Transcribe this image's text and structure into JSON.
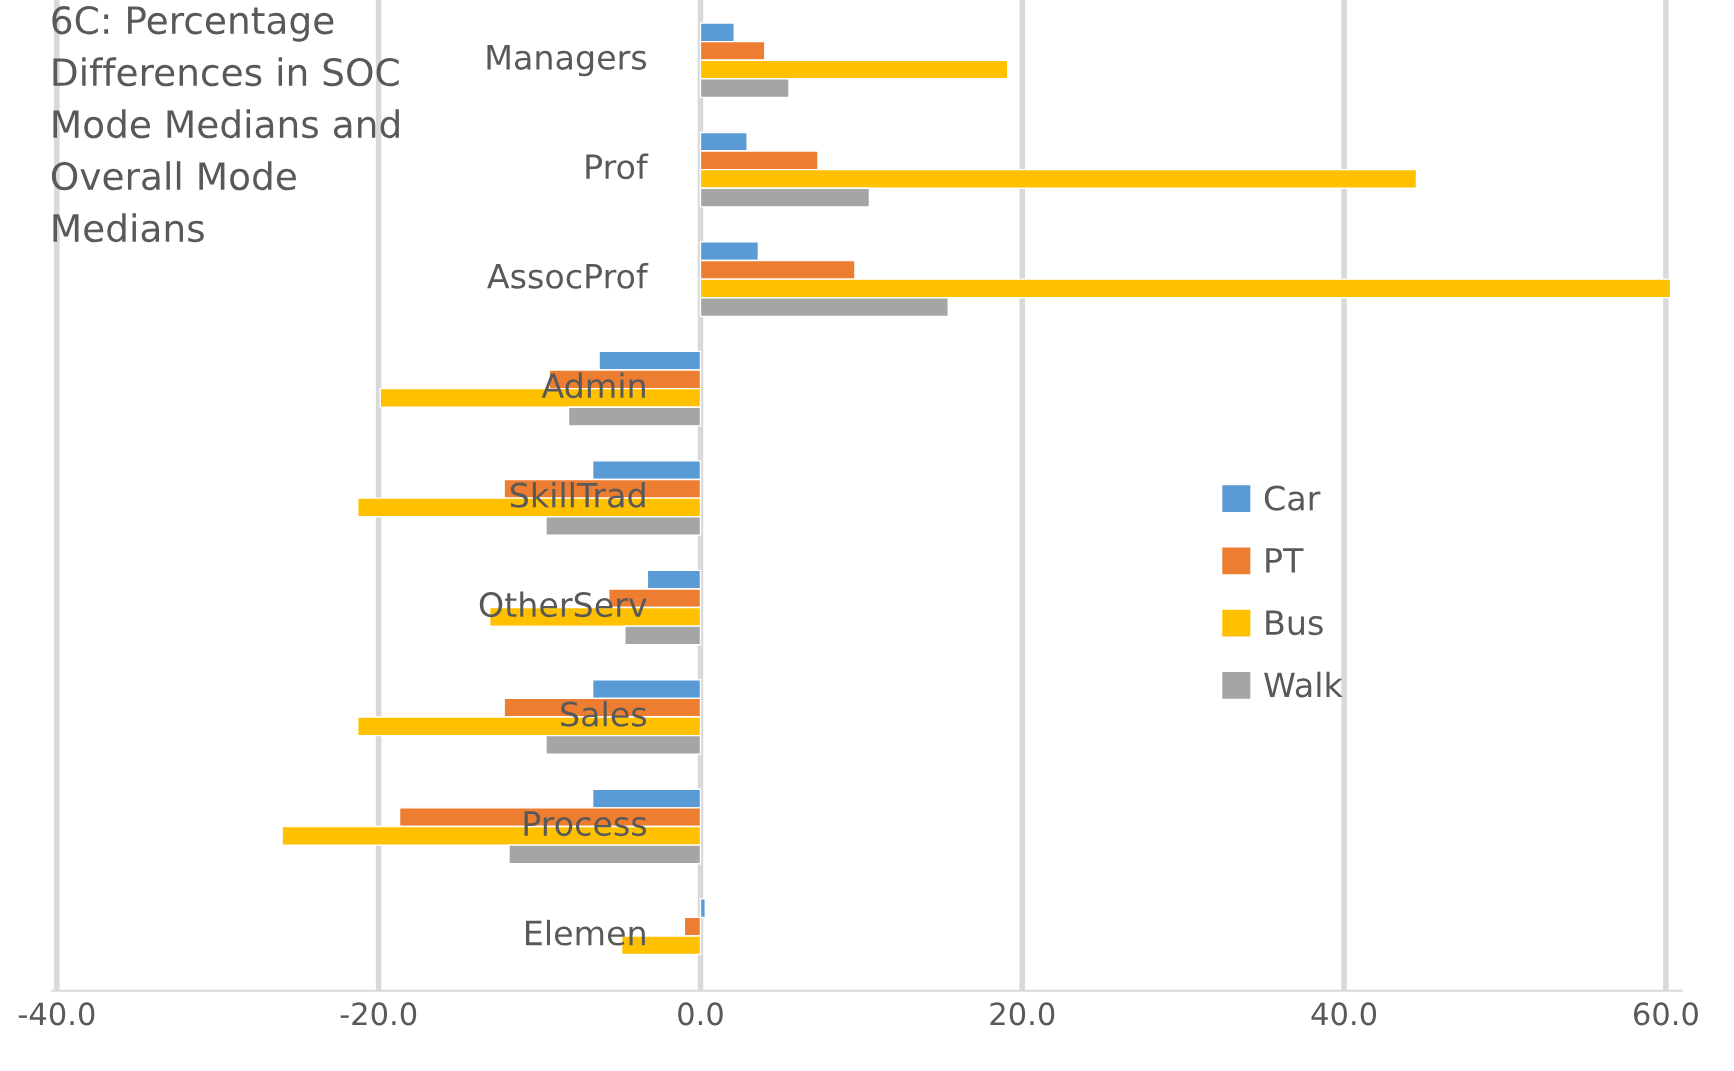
{
  "chart_data": {
    "type": "bar",
    "orientation": "horizontal",
    "title": "6C: Percentage Differences in SOC Mode Medians and Overall Mode Medians",
    "categories": [
      "Managers",
      "Prof",
      "AssocProf",
      "Admin",
      "SkillTrad",
      "OtherServ",
      "Sales",
      "Process",
      "Elemen"
    ],
    "series": [
      {
        "name": "Car",
        "color": "#5b9bd5",
        "values": [
          2.1,
          2.9,
          3.6,
          -6.3,
          -6.7,
          -3.3,
          -6.7,
          -6.7,
          0.3
        ]
      },
      {
        "name": "PT",
        "color": "#ed7d31",
        "values": [
          4.0,
          7.3,
          9.6,
          -9.4,
          -12.2,
          -5.7,
          -12.2,
          -18.7,
          -1.0
        ]
      },
      {
        "name": "Bus",
        "color": "#ffc000",
        "values": [
          19.1,
          44.5,
          60.3,
          -19.9,
          -21.3,
          -13.1,
          -21.3,
          -26.0,
          -4.9
        ]
      },
      {
        "name": "Walk",
        "color": "#a5a5a5",
        "values": [
          5.5,
          10.5,
          15.4,
          -8.2,
          -9.6,
          -4.7,
          -9.6,
          -11.9,
          null
        ]
      }
    ],
    "xlim": [
      -40.3,
      61
    ],
    "xticks": [
      {
        "value": -40,
        "label": "-40.0"
      },
      {
        "value": -20,
        "label": "-20.0"
      },
      {
        "value": 0,
        "label": "0.0"
      },
      {
        "value": 20,
        "label": "20.0"
      },
      {
        "value": 40,
        "label": "40.0"
      },
      {
        "value": 60,
        "label": "60.0"
      }
    ],
    "grid": "x",
    "legend": "right"
  }
}
